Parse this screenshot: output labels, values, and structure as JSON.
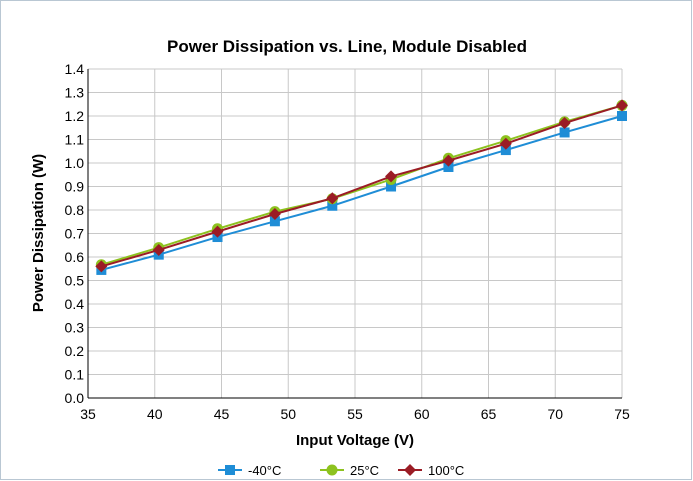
{
  "chart_data": {
    "type": "line",
    "title": "Power Dissipation vs. Line, Module Disabled",
    "xlabel": "Input Voltage (V)",
    "ylabel": "Power Dissipation (W)",
    "xlim": [
      35,
      75
    ],
    "ylim": [
      0.0,
      1.4
    ],
    "x_ticks": [
      "35",
      "40",
      "45",
      "50",
      "55",
      "60",
      "65",
      "70",
      "75"
    ],
    "y_ticks": [
      "0.0",
      "0.1",
      "0.2",
      "0.3",
      "0.4",
      "0.5",
      "0.6",
      "0.7",
      "0.8",
      "0.9",
      "1.0",
      "1.1",
      "1.2",
      "1.3",
      "1.4"
    ],
    "grid": true,
    "legend_position": "bottom",
    "x": [
      36,
      40.3,
      44.7,
      49,
      53.3,
      57.7,
      62,
      66.3,
      70.7,
      75
    ],
    "series": [
      {
        "name": "-40°C",
        "color": "#1f8dd6",
        "marker": "square",
        "values": [
          0.545,
          0.61,
          0.685,
          0.752,
          0.818,
          0.9,
          0.983,
          1.055,
          1.13,
          1.2
        ]
      },
      {
        "name": "25°C",
        "color": "#8dc21f",
        "marker": "circle",
        "values": [
          0.567,
          0.64,
          0.72,
          0.793,
          0.848,
          0.93,
          1.02,
          1.095,
          1.175,
          1.245
        ]
      },
      {
        "name": "100°C",
        "color": "#9b1c25",
        "marker": "diamond",
        "values": [
          0.56,
          0.63,
          0.708,
          0.783,
          0.85,
          0.943,
          1.01,
          1.082,
          1.17,
          1.245
        ]
      }
    ]
  }
}
